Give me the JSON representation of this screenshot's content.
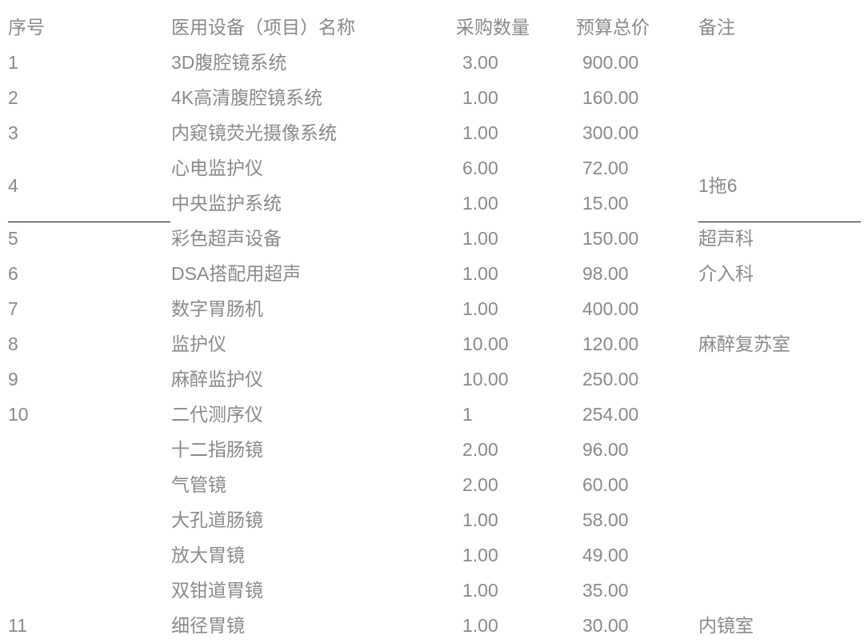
{
  "header": {
    "no": "序号",
    "name": "医用设备（项目）名称",
    "qty": "采购数量",
    "price": "预算总价",
    "remark": "备注"
  },
  "rows": [
    {
      "no": "1",
      "items": [
        {
          "name": "3D腹腔镜系统",
          "qty": "3.00",
          "price": "900.00"
        }
      ],
      "remark": ""
    },
    {
      "no": "2",
      "items": [
        {
          "name": "4K高清腹腔镜系统",
          "qty": "1.00",
          "price": "160.00"
        }
      ],
      "remark": ""
    },
    {
      "no": "3",
      "items": [
        {
          "name": "内窥镜荧光摄像系统",
          "qty": "1.00",
          "price": "300.00"
        }
      ],
      "remark": ""
    },
    {
      "no": "4",
      "items": [
        {
          "name": "心电监护仪",
          "qty": "6.00",
          "price": "72.00"
        },
        {
          "name": "中央监护系统",
          "qty": "1.00",
          "price": "15.00"
        }
      ],
      "remark": "1拖6"
    },
    {
      "no": "5",
      "items": [
        {
          "name": "彩色超声设备",
          "qty": "1.00",
          "price": "150.00"
        }
      ],
      "remark": "超声科"
    },
    {
      "no": "6",
      "items": [
        {
          "name": "DSA搭配用超声",
          "qty": "1.00",
          "price": "98.00"
        }
      ],
      "remark": "介入科"
    },
    {
      "no": "7",
      "items": [
        {
          "name": "数字胃肠机",
          "qty": "1.00",
          "price": "400.00"
        }
      ],
      "remark": ""
    },
    {
      "no": "8",
      "items": [
        {
          "name": "监护仪",
          "qty": "10.00",
          "price": "120.00"
        }
      ],
      "remark": "麻醉复苏室"
    },
    {
      "no": "9",
      "items": [
        {
          "name": "麻醉监护仪",
          "qty": "10.00",
          "price": "250.00"
        }
      ],
      "remark": ""
    },
    {
      "no": "10",
      "items": [
        {
          "name": "二代测序仪",
          "qty": "1",
          "price": "254.00"
        }
      ],
      "remark": ""
    },
    {
      "no": "",
      "items": [
        {
          "name": "十二指肠镜",
          "qty": "2.00",
          "price": "96.00"
        }
      ],
      "remark": ""
    },
    {
      "no": "",
      "items": [
        {
          "name": "气管镜",
          "qty": "2.00",
          "price": "60.00"
        }
      ],
      "remark": ""
    },
    {
      "no": "",
      "items": [
        {
          "name": "大孔道肠镜",
          "qty": "1.00",
          "price": "58.00"
        }
      ],
      "remark": ""
    },
    {
      "no": "",
      "items": [
        {
          "name": "放大胃镜",
          "qty": "1.00",
          "price": "49.00"
        }
      ],
      "remark": ""
    },
    {
      "no": "",
      "items": [
        {
          "name": "双钳道胃镜",
          "qty": "1.00",
          "price": "35.00"
        }
      ],
      "remark": ""
    },
    {
      "no": "11",
      "items": [
        {
          "name": "细径胃镜",
          "qty": "1.00",
          "price": "30.00"
        }
      ],
      "remark": "内镜室"
    }
  ]
}
